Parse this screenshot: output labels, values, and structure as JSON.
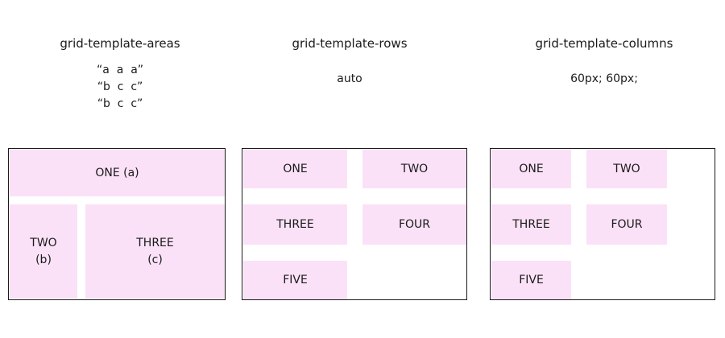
{
  "panels": [
    {
      "title": "grid-template-areas",
      "value_lines": [
        "“a  a  a”",
        "“b  c  c”",
        "“b  c  c”"
      ],
      "cells": [
        {
          "lines": [
            "ONE (a)"
          ]
        },
        {
          "lines": [
            "TWO",
            "(b)"
          ]
        },
        {
          "lines": [
            "THREE",
            "(c)"
          ]
        }
      ]
    },
    {
      "title": "grid-template-rows",
      "value": "auto",
      "cells": [
        {
          "label": "ONE"
        },
        {
          "label": "TWO"
        },
        {
          "label": "THREE"
        },
        {
          "label": "FOUR"
        },
        {
          "label": "FIVE"
        }
      ]
    },
    {
      "title": "grid-template-columns",
      "value": "60px; 60px;",
      "cells": [
        {
          "label": "ONE"
        },
        {
          "label": "TWO"
        },
        {
          "label": "THREE"
        },
        {
          "label": "FOUR"
        },
        {
          "label": "FIVE"
        }
      ]
    }
  ],
  "colors": {
    "cell_fill": "#fbe1f7",
    "border": "#1a1a1a",
    "background": "#ffffff"
  }
}
